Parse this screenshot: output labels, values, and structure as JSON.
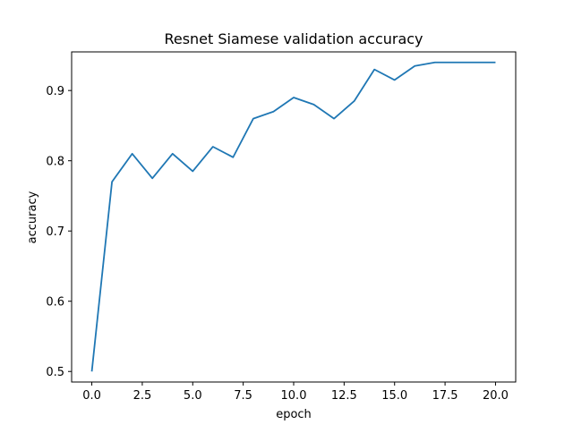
{
  "chart_data": {
    "type": "line",
    "title": "Resnet Siamese validation accuracy",
    "xlabel": "epoch",
    "ylabel": "accuracy",
    "xlim": [
      -1.0,
      21.0
    ],
    "ylim": [
      0.485,
      0.955
    ],
    "x_ticks": [
      0.0,
      2.5,
      5.0,
      7.5,
      10.0,
      12.5,
      15.0,
      17.5,
      20.0
    ],
    "x_tick_labels": [
      "0.0",
      "2.5",
      "5.0",
      "7.5",
      "10.0",
      "12.5",
      "15.0",
      "17.5",
      "20.0"
    ],
    "y_ticks": [
      0.5,
      0.6,
      0.7,
      0.8,
      0.9
    ],
    "y_tick_labels": [
      "0.5",
      "0.6",
      "0.7",
      "0.8",
      "0.9"
    ],
    "grid": false,
    "series": [
      {
        "color": "#1f77b4",
        "x": [
          0,
          1,
          2,
          3,
          4,
          5,
          6,
          7,
          8,
          9,
          10,
          11,
          12,
          13,
          14,
          15,
          16,
          17,
          18,
          19,
          20
        ],
        "y": [
          0.5,
          0.77,
          0.81,
          0.775,
          0.81,
          0.785,
          0.82,
          0.805,
          0.86,
          0.87,
          0.89,
          0.88,
          0.86,
          0.885,
          0.93,
          0.915,
          0.935,
          0.94,
          0.94,
          0.94,
          0.94
        ]
      }
    ]
  }
}
